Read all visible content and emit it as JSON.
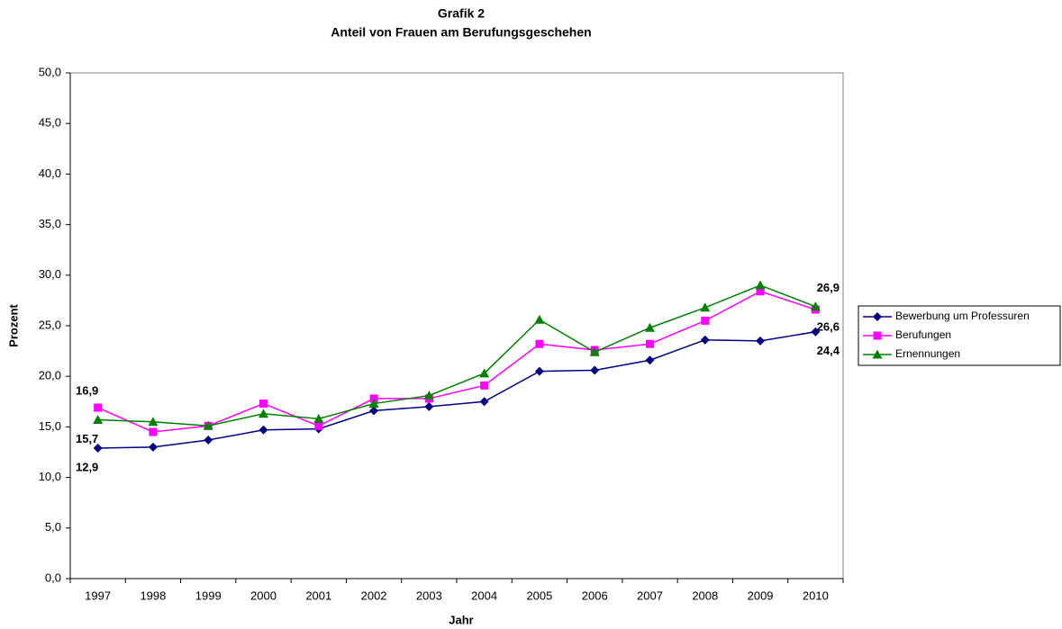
{
  "chart_data": {
    "type": "line",
    "title": "Grafik 2",
    "subtitle": "Anteil von Frauen am Berufungsgeschehen",
    "x_label": "Jahr",
    "y_label": "Prozent",
    "categories": [
      "1997",
      "1998",
      "1999",
      "2000",
      "2001",
      "2002",
      "2003",
      "2004",
      "2005",
      "2006",
      "2007",
      "2008",
      "2009",
      "2010"
    ],
    "series": [
      {
        "name": "Bewerbung um Professuren",
        "color": "#000080",
        "marker": "diamond",
        "values": [
          12.9,
          13.0,
          13.7,
          14.7,
          14.8,
          16.6,
          17.0,
          17.5,
          20.5,
          20.6,
          21.6,
          23.6,
          23.5,
          24.4
        ],
        "value_labels": [
          "12,9",
          null,
          null,
          null,
          null,
          null,
          null,
          null,
          null,
          null,
          null,
          null,
          null,
          "24,4"
        ]
      },
      {
        "name": "Berufungen",
        "color": "#ff00ff",
        "marker": "square",
        "values": [
          16.9,
          14.5,
          15.1,
          17.3,
          15.1,
          17.8,
          17.8,
          19.1,
          23.2,
          22.6,
          23.2,
          25.5,
          28.4,
          26.6
        ],
        "value_labels": [
          "16,9",
          null,
          null,
          null,
          null,
          null,
          null,
          null,
          null,
          null,
          null,
          null,
          null,
          "26,6"
        ]
      },
      {
        "name": "Ernennungen",
        "color": "#008000",
        "marker": "triangle",
        "values": [
          15.7,
          15.5,
          15.1,
          16.3,
          15.8,
          17.3,
          18.1,
          20.3,
          25.6,
          22.4,
          24.8,
          26.8,
          29.0,
          26.9
        ],
        "value_labels": [
          "15,7",
          null,
          null,
          null,
          null,
          null,
          null,
          null,
          null,
          null,
          null,
          null,
          null,
          "26,9"
        ]
      }
    ],
    "ylim": [
      0,
      50
    ],
    "yticks": [
      {
        "value": 0,
        "label": "0,0"
      },
      {
        "value": 5,
        "label": "5,0"
      },
      {
        "value": 10,
        "label": "10,0"
      },
      {
        "value": 15,
        "label": "15,0"
      },
      {
        "value": 20,
        "label": "20,0"
      },
      {
        "value": 25,
        "label": "25,0"
      },
      {
        "value": 30,
        "label": "30,0"
      },
      {
        "value": 35,
        "label": "35,0"
      },
      {
        "value": 40,
        "label": "40,0"
      },
      {
        "value": 45,
        "label": "45,0"
      },
      {
        "value": 50,
        "label": "50,0"
      }
    ],
    "grid": false,
    "legend": "right"
  }
}
